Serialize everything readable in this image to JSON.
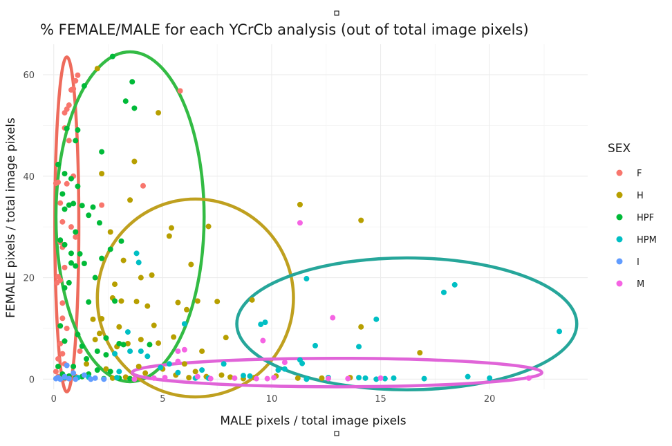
{
  "chart_data": {
    "type": "scatter",
    "title": "% FEMALE/MALE for each YCrCb analysis (out of total image pixels)",
    "xlabel": "MALE pixels / total image pixels",
    "ylabel": "FEMALE pixels / total image pixels",
    "xlim": [
      -0.5,
      24.5
    ],
    "ylim": [
      -2,
      66
    ],
    "x_ticks": [
      0,
      5,
      10,
      15,
      20
    ],
    "y_ticks": [
      0,
      20,
      40,
      60
    ],
    "grid": true,
    "legend": {
      "title": "SEX",
      "position": "right"
    },
    "series": [
      {
        "name": "F",
        "color": "#F8766D",
        "points": [
          [
            0.1,
            38.6
          ],
          [
            0.2,
            38.8
          ],
          [
            0.3,
            34.7
          ],
          [
            0.4,
            31.0
          ],
          [
            0.3,
            27.0
          ],
          [
            0.5,
            49.5
          ],
          [
            0.5,
            52.5
          ],
          [
            0.6,
            53.2
          ],
          [
            0.7,
            54.0
          ],
          [
            0.8,
            57.0
          ],
          [
            0.9,
            57.2
          ],
          [
            1.0,
            58.8
          ],
          [
            1.1,
            59.9
          ],
          [
            0.7,
            47.0
          ],
          [
            0.9,
            40.0
          ],
          [
            0.6,
            38.5
          ],
          [
            0.8,
            30.0
          ],
          [
            1.0,
            28.0
          ],
          [
            0.4,
            26.0
          ],
          [
            0.5,
            22.0
          ],
          [
            0.3,
            19.5
          ],
          [
            0.2,
            20.2
          ],
          [
            0.15,
            19.0
          ],
          [
            0.4,
            12.0
          ],
          [
            0.6,
            10.0
          ],
          [
            0.3,
            7.0
          ],
          [
            0.4,
            5.0
          ],
          [
            0.2,
            4.0
          ],
          [
            0.5,
            3.0
          ],
          [
            0.1,
            1.5
          ],
          [
            0.2,
            0.5
          ],
          [
            0.3,
            0.2
          ],
          [
            0.5,
            0.1
          ],
          [
            0.7,
            0.3
          ],
          [
            1.0,
            0.5
          ],
          [
            0.4,
            15.0
          ],
          [
            2.2,
            34.3
          ],
          [
            4.1,
            38.1
          ],
          [
            5.8,
            56.8
          ],
          [
            1.2,
            5.5
          ]
        ]
      },
      {
        "name": "H",
        "color": "#B79F00",
        "points": [
          [
            2.0,
            61.2
          ],
          [
            3.5,
            35.3
          ],
          [
            3.7,
            42.9
          ],
          [
            4.8,
            52.5
          ],
          [
            2.2,
            40.5
          ],
          [
            2.6,
            29.0
          ],
          [
            5.4,
            29.8
          ],
          [
            5.3,
            28.2
          ],
          [
            7.1,
            30.1
          ],
          [
            6.3,
            22.6
          ],
          [
            3.2,
            23.4
          ],
          [
            4.0,
            20.0
          ],
          [
            4.5,
            20.5
          ],
          [
            2.8,
            18.7
          ],
          [
            5.7,
            15.1
          ],
          [
            6.6,
            15.4
          ],
          [
            7.5,
            15.3
          ],
          [
            9.1,
            15.6
          ],
          [
            3.1,
            15.4
          ],
          [
            3.8,
            15.3
          ],
          [
            4.3,
            14.4
          ],
          [
            6.1,
            13.7
          ],
          [
            2.7,
            16.0
          ],
          [
            2.2,
            11.9
          ],
          [
            1.8,
            11.8
          ],
          [
            4.6,
            10.6
          ],
          [
            3.0,
            10.3
          ],
          [
            2.1,
            9.0
          ],
          [
            5.5,
            8.3
          ],
          [
            4.0,
            7.8
          ],
          [
            3.4,
            7.0
          ],
          [
            4.8,
            7.1
          ],
          [
            1.9,
            7.8
          ],
          [
            2.9,
            6.4
          ],
          [
            11.3,
            34.4
          ],
          [
            14.1,
            31.3
          ],
          [
            14.1,
            10.3
          ],
          [
            16.8,
            5.2
          ],
          [
            6.0,
            3.0
          ],
          [
            6.8,
            5.5
          ],
          [
            7.9,
            8.2
          ],
          [
            8.1,
            0.4
          ],
          [
            5.6,
            0.8
          ],
          [
            7.0,
            0.5
          ],
          [
            4.2,
            1.2
          ],
          [
            3.3,
            0.4
          ],
          [
            2.7,
            0.2
          ],
          [
            9.2,
            0.3
          ],
          [
            10.2,
            0.6
          ],
          [
            11.2,
            0.2
          ],
          [
            1.5,
            3.0
          ],
          [
            2.4,
            2.0
          ],
          [
            3.9,
            2.5
          ],
          [
            5.0,
            2.0
          ],
          [
            6.5,
            1.5
          ],
          [
            7.7,
            0.8
          ],
          [
            12.3,
            0.2
          ],
          [
            13.6,
            0.3
          ],
          [
            8.7,
            0.1
          ],
          [
            6.2,
            0.3
          ]
        ]
      },
      {
        "name": "HPF",
        "color": "#00BA38",
        "points": [
          [
            2.7,
            63.6
          ],
          [
            3.6,
            58.6
          ],
          [
            3.3,
            54.8
          ],
          [
            3.7,
            53.4
          ],
          [
            1.4,
            57.8
          ],
          [
            0.6,
            49.4
          ],
          [
            1.1,
            49.1
          ],
          [
            1.0,
            47.0
          ],
          [
            2.2,
            44.8
          ],
          [
            0.2,
            42.3
          ],
          [
            0.5,
            40.5
          ],
          [
            0.8,
            39.5
          ],
          [
            1.1,
            38.0
          ],
          [
            0.4,
            36.5
          ],
          [
            0.5,
            33.5
          ],
          [
            0.7,
            34.3
          ],
          [
            0.9,
            34.6
          ],
          [
            1.3,
            34.2
          ],
          [
            1.8,
            33.9
          ],
          [
            1.6,
            32.3
          ],
          [
            2.1,
            30.8
          ],
          [
            1.0,
            29.0
          ],
          [
            0.3,
            27.4
          ],
          [
            0.5,
            26.5
          ],
          [
            0.8,
            24.8
          ],
          [
            1.2,
            24.7
          ],
          [
            2.6,
            25.6
          ],
          [
            3.1,
            27.2
          ],
          [
            1.4,
            22.8
          ],
          [
            0.8,
            22.9
          ],
          [
            1.0,
            22.3
          ],
          [
            2.2,
            23.8
          ],
          [
            0.5,
            18.0
          ],
          [
            1.6,
            15.2
          ],
          [
            2.8,
            15.4
          ],
          [
            0.3,
            10.5
          ],
          [
            1.1,
            8.8
          ],
          [
            2.4,
            8.1
          ],
          [
            3.0,
            7.0
          ],
          [
            3.2,
            6.8
          ],
          [
            2.0,
            5.5
          ],
          [
            2.4,
            4.8
          ],
          [
            1.5,
            4.0
          ],
          [
            0.9,
            2.5
          ],
          [
            0.2,
            2.5
          ],
          [
            0.4,
            1.0
          ],
          [
            0.7,
            0.6
          ],
          [
            1.0,
            0.2
          ],
          [
            1.3,
            0.5
          ],
          [
            1.6,
            1.0
          ],
          [
            2.0,
            1.8
          ],
          [
            2.6,
            1.5
          ],
          [
            3.0,
            0.2
          ],
          [
            3.5,
            0.1
          ],
          [
            2.3,
            0.1
          ],
          [
            0.5,
            7.5
          ],
          [
            1.3,
            6.5
          ],
          [
            0.7,
            19.0
          ],
          [
            1.9,
            20.0
          ],
          [
            4.4,
            6.8
          ]
        ]
      },
      {
        "name": "HPM",
        "color": "#00BFC4",
        "points": [
          [
            3.8,
            24.8
          ],
          [
            3.9,
            23.0
          ],
          [
            11.6,
            19.8
          ],
          [
            18.4,
            18.6
          ],
          [
            17.9,
            17.1
          ],
          [
            23.2,
            9.4
          ],
          [
            9.7,
            11.2
          ],
          [
            9.5,
            10.8
          ],
          [
            14.8,
            11.8
          ],
          [
            12.0,
            6.6
          ],
          [
            14.0,
            6.4
          ],
          [
            3.4,
            9.3
          ],
          [
            6.0,
            10.9
          ],
          [
            4.0,
            5.5
          ],
          [
            4.3,
            4.5
          ],
          [
            7.8,
            3.0
          ],
          [
            3.5,
            5.5
          ],
          [
            2.8,
            5.0
          ],
          [
            5.3,
            3.0
          ],
          [
            11.3,
            3.8
          ],
          [
            11.4,
            3.1
          ],
          [
            10.3,
            1.8
          ],
          [
            10.6,
            2.0
          ],
          [
            19.0,
            0.5
          ],
          [
            17.0,
            0.1
          ],
          [
            15.2,
            0.1
          ],
          [
            14.8,
            0.0
          ],
          [
            14.3,
            0.2
          ],
          [
            15.6,
            0.2
          ],
          [
            14.0,
            0.3
          ],
          [
            11.6,
            0.0
          ],
          [
            9.0,
            0.6
          ],
          [
            8.7,
            0.7
          ],
          [
            6.5,
            0.2
          ],
          [
            7.1,
            0.2
          ],
          [
            4.9,
            2.3
          ],
          [
            2.9,
            0.3
          ],
          [
            1.6,
            0.4
          ],
          [
            1.1,
            0.3
          ],
          [
            0.5,
            0.3
          ],
          [
            6.8,
            1.8
          ],
          [
            5.7,
            1.3
          ],
          [
            3.0,
            1.5
          ],
          [
            20.0,
            0.2
          ],
          [
            12.6,
            0.3
          ]
        ]
      },
      {
        "name": "I",
        "color": "#619CFF",
        "points": [
          [
            0.6,
            2.7
          ],
          [
            0.5,
            0.5
          ],
          [
            0.7,
            0.1
          ],
          [
            1.0,
            0.0
          ],
          [
            0.3,
            0.0
          ],
          [
            0.2,
            0.3
          ],
          [
            1.4,
            0.8
          ],
          [
            1.9,
            0.2
          ],
          [
            2.3,
            0.0
          ],
          [
            0.9,
            1.2
          ],
          [
            0.1,
            0.1
          ],
          [
            1.7,
            0.0
          ]
        ]
      },
      {
        "name": "M",
        "color": "#F564E3",
        "points": [
          [
            11.3,
            30.8
          ],
          [
            12.8,
            12.1
          ],
          [
            9.6,
            7.6
          ],
          [
            10.6,
            3.3
          ],
          [
            5.7,
            5.5
          ],
          [
            5.7,
            3.5
          ],
          [
            6.0,
            5.8
          ],
          [
            9.3,
            0.1
          ],
          [
            9.8,
            0.1
          ],
          [
            15.0,
            0.2
          ],
          [
            8.3,
            0.2
          ],
          [
            7.2,
            0.1
          ],
          [
            21.8,
            0.2
          ],
          [
            13.5,
            0.1
          ],
          [
            12.6,
            0.1
          ],
          [
            5.1,
            0.3
          ],
          [
            3.7,
            0.0
          ],
          [
            4.6,
            0.2
          ],
          [
            6.6,
            0.5
          ],
          [
            10.1,
            0.3
          ]
        ]
      }
    ],
    "annotations": {
      "ellipses": [
        {
          "color": "#EE6B5C",
          "cx": 0.6,
          "cy": 30.5,
          "rx": 0.55,
          "ry": 33
        },
        {
          "color": "#33BB44",
          "cx": 3.5,
          "cy": 32,
          "rx": 3.4,
          "ry": 32.5
        },
        {
          "color": "#BFA01F",
          "cx": 6.5,
          "cy": 16,
          "rx": 4.5,
          "ry": 19.5
        },
        {
          "color": "#26A69A",
          "cx": 16.2,
          "cy": 10.9,
          "rx": 7.8,
          "ry": 13
        },
        {
          "color": "#E064D8",
          "cx": 13,
          "cy": 1.3,
          "rx": 9.4,
          "ry": 2.8
        }
      ]
    }
  }
}
